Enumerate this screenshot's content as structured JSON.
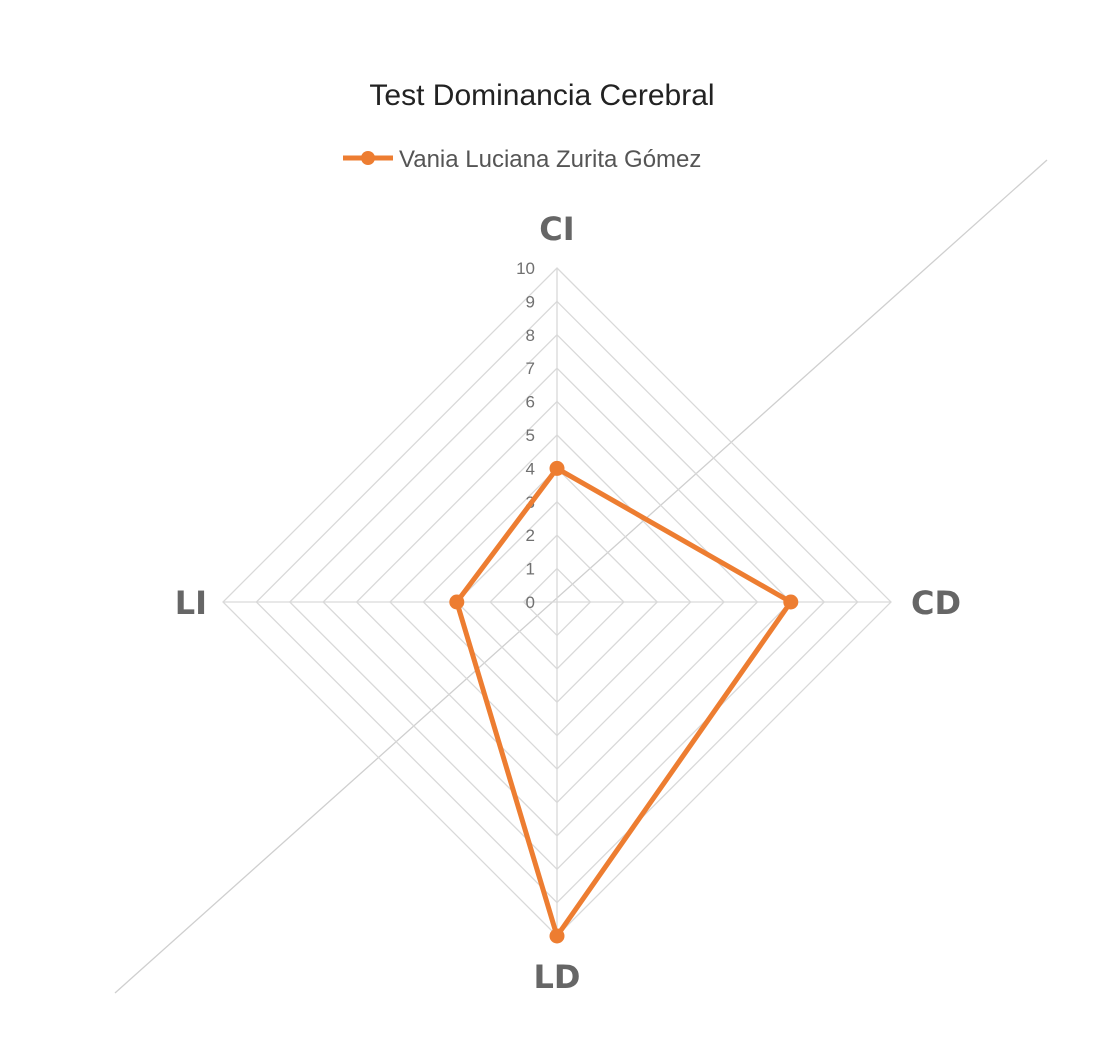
{
  "chart_data": {
    "type": "radar",
    "title": "Test Dominancia Cerebral",
    "categories": [
      "CI",
      "CD",
      "LD",
      "LI"
    ],
    "series": [
      {
        "name": "Vania Luciana Zurita Gómez",
        "values": [
          4,
          7,
          10,
          3
        ],
        "color": "#ED7D31"
      }
    ],
    "rlim": [
      0,
      10
    ],
    "ticks": [
      "0",
      "1",
      "2",
      "3",
      "4",
      "5",
      "6",
      "7",
      "8",
      "9",
      "10"
    ],
    "grid": true,
    "legend_position": "top",
    "diagonal_reference_line": true
  }
}
